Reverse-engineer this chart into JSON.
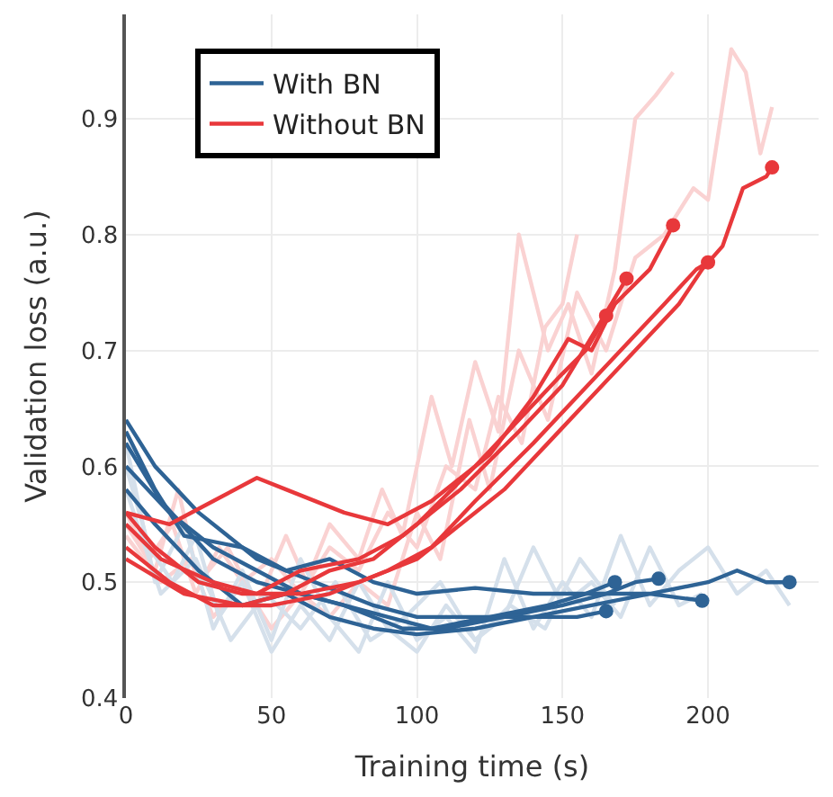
{
  "chart_data": {
    "type": "line",
    "xlabel": "Training time (s)",
    "ylabel": "Validation loss (a.u.)",
    "xlim": [
      0,
      238
    ],
    "ylim": [
      0.4,
      0.99
    ],
    "xticks": [
      0,
      50,
      100,
      150,
      200
    ],
    "yticks": [
      0.4,
      0.5,
      0.6,
      0.7,
      0.8,
      0.9
    ],
    "grid": true,
    "legend": "top left",
    "marker": "none",
    "line_style": "solid",
    "series": [
      {
        "color": "#fad2d2",
        "x": [
          0,
          10,
          18,
          25,
          35,
          45,
          55,
          62,
          70,
          80,
          88,
          95,
          105,
          112,
          120,
          128,
          135,
          145,
          152,
          160,
          168,
          175,
          182,
          188
        ],
        "values": [
          0.55,
          0.51,
          0.58,
          0.5,
          0.53,
          0.48,
          0.54,
          0.5,
          0.55,
          0.52,
          0.58,
          0.54,
          0.66,
          0.6,
          0.69,
          0.63,
          0.8,
          0.7,
          0.74,
          0.68,
          0.77,
          0.9,
          0.92,
          0.94
        ]
      },
      {
        "color": "#fad2d2",
        "x": [
          0,
          12,
          22,
          30,
          40,
          50,
          60,
          70,
          80,
          90,
          100,
          108,
          118,
          125,
          135,
          145,
          155,
          165,
          175,
          185,
          195,
          200,
          208,
          213,
          218,
          222
        ],
        "values": [
          0.54,
          0.5,
          0.52,
          0.47,
          0.5,
          0.46,
          0.49,
          0.47,
          0.5,
          0.48,
          0.56,
          0.52,
          0.64,
          0.58,
          0.7,
          0.64,
          0.75,
          0.7,
          0.78,
          0.8,
          0.84,
          0.83,
          0.96,
          0.94,
          0.87,
          0.91
        ]
      },
      {
        "color": "#fad2d2",
        "x": [
          0,
          8,
          16,
          24,
          32,
          40,
          50,
          60,
          70,
          80,
          90,
          100,
          110,
          120,
          128,
          136,
          144,
          150,
          155
        ],
        "values": [
          0.56,
          0.52,
          0.55,
          0.49,
          0.53,
          0.5,
          0.52,
          0.49,
          0.53,
          0.51,
          0.56,
          0.53,
          0.6,
          0.58,
          0.66,
          0.62,
          0.72,
          0.74,
          0.8
        ]
      },
      {
        "color": "#d5e0eb",
        "x": [
          0,
          10,
          20,
          30,
          40,
          50,
          60,
          70,
          80,
          90,
          100,
          110,
          120,
          130,
          140,
          150,
          160,
          170,
          180,
          190,
          200,
          210,
          220,
          228
        ],
        "values": [
          0.62,
          0.5,
          0.55,
          0.46,
          0.51,
          0.45,
          0.52,
          0.47,
          0.44,
          0.5,
          0.45,
          0.47,
          0.44,
          0.52,
          0.46,
          0.5,
          0.47,
          0.54,
          0.48,
          0.51,
          0.53,
          0.49,
          0.51,
          0.48
        ]
      },
      {
        "color": "#d5e0eb",
        "x": [
          0,
          8,
          16,
          24,
          32,
          40,
          50,
          60,
          70,
          80,
          90,
          100,
          110,
          120,
          130,
          140,
          150,
          160,
          170,
          180,
          190,
          198
        ],
        "values": [
          0.6,
          0.53,
          0.5,
          0.54,
          0.47,
          0.5,
          0.44,
          0.48,
          0.45,
          0.5,
          0.46,
          0.44,
          0.48,
          0.45,
          0.47,
          0.53,
          0.48,
          0.5,
          0.47,
          0.53,
          0.48,
          0.49
        ]
      },
      {
        "color": "#d5e0eb",
        "x": [
          0,
          12,
          24,
          36,
          48,
          60,
          72,
          84,
          96,
          108,
          120,
          132,
          144,
          156,
          168
        ],
        "values": [
          0.58,
          0.49,
          0.52,
          0.45,
          0.49,
          0.46,
          0.5,
          0.45,
          0.47,
          0.5,
          0.45,
          0.48,
          0.46,
          0.52,
          0.48
        ]
      },
      {
        "name": "With BN",
        "color": "#2e6395",
        "x": [
          0,
          10,
          25,
          45,
          65,
          85,
          100,
          120,
          140,
          160,
          180,
          200,
          210,
          220,
          228
        ],
        "values": [
          0.64,
          0.6,
          0.56,
          0.52,
          0.5,
          0.48,
          0.47,
          0.47,
          0.47,
          0.48,
          0.49,
          0.5,
          0.51,
          0.5,
          0.5
        ]
      },
      {
        "color": "#2e6395",
        "x": [
          0,
          10,
          20,
          40,
          55,
          70,
          85,
          100,
          120,
          140,
          160,
          180,
          198
        ],
        "values": [
          0.63,
          0.58,
          0.54,
          0.53,
          0.51,
          0.52,
          0.5,
          0.49,
          0.495,
          0.49,
          0.49,
          0.49,
          0.484
        ]
      },
      {
        "color": "#2e6395",
        "x": [
          0,
          12,
          30,
          45,
          60,
          75,
          95,
          110,
          130,
          150,
          165,
          175,
          183
        ],
        "values": [
          0.62,
          0.57,
          0.52,
          0.5,
          0.49,
          0.48,
          0.46,
          0.46,
          0.47,
          0.48,
          0.49,
          0.5,
          0.503
        ]
      },
      {
        "color": "#2e6395",
        "x": [
          0,
          15,
          30,
          45,
          60,
          75,
          90,
          105,
          125,
          145,
          158,
          168
        ],
        "values": [
          0.6,
          0.56,
          0.53,
          0.51,
          0.49,
          0.48,
          0.47,
          0.46,
          0.47,
          0.48,
          0.49,
          0.5
        ]
      },
      {
        "color": "#2e6395",
        "x": [
          0,
          10,
          25,
          40,
          55,
          70,
          85,
          100,
          120,
          140,
          155,
          165
        ],
        "values": [
          0.58,
          0.55,
          0.51,
          0.48,
          0.49,
          0.47,
          0.46,
          0.455,
          0.46,
          0.47,
          0.47,
          0.475
        ]
      },
      {
        "name": "Without BN",
        "color": "#e8383b",
        "x": [
          0,
          10,
          25,
          40,
          60,
          80,
          100,
          115,
          130,
          145,
          160,
          175,
          190,
          198,
          205,
          212,
          220,
          222
        ],
        "values": [
          0.56,
          0.53,
          0.5,
          0.49,
          0.49,
          0.5,
          0.52,
          0.55,
          0.58,
          0.62,
          0.66,
          0.7,
          0.74,
          0.77,
          0.79,
          0.84,
          0.85,
          0.858
        ]
      },
      {
        "color": "#e8383b",
        "x": [
          0,
          15,
          30,
          50,
          70,
          90,
          105,
          120,
          140,
          155,
          170,
          185,
          196,
          200
        ],
        "values": [
          0.53,
          0.5,
          0.48,
          0.48,
          0.49,
          0.51,
          0.53,
          0.57,
          0.62,
          0.66,
          0.7,
          0.74,
          0.77,
          0.776
        ]
      },
      {
        "color": "#e8383b",
        "x": [
          0,
          15,
          30,
          45,
          55,
          75,
          90,
          105,
          125,
          140,
          152,
          160,
          168,
          180,
          188
        ],
        "values": [
          0.56,
          0.55,
          0.57,
          0.59,
          0.58,
          0.56,
          0.55,
          0.57,
          0.61,
          0.66,
          0.71,
          0.7,
          0.74,
          0.77,
          0.808
        ]
      },
      {
        "color": "#e8383b",
        "x": [
          0,
          12,
          30,
          45,
          60,
          80,
          95,
          115,
          135,
          150,
          162,
          172
        ],
        "values": [
          0.55,
          0.52,
          0.5,
          0.49,
          0.51,
          0.52,
          0.54,
          0.58,
          0.63,
          0.67,
          0.72,
          0.762
        ]
      },
      {
        "color": "#e8383b",
        "x": [
          0,
          20,
          40,
          55,
          70,
          85,
          100,
          120,
          135,
          150,
          158,
          165
        ],
        "values": [
          0.52,
          0.49,
          0.48,
          0.49,
          0.51,
          0.52,
          0.55,
          0.6,
          0.64,
          0.68,
          0.7,
          0.73
        ]
      },
      {
        "type": "scatter",
        "marker": "circle",
        "color": "#2e6395",
        "x": [
          228,
          198,
          183,
          168,
          165
        ],
        "values": [
          0.5,
          0.484,
          0.503,
          0.5,
          0.475
        ]
      },
      {
        "type": "scatter",
        "marker": "circle",
        "color": "#e8383b",
        "x": [
          222,
          200,
          188,
          172,
          165
        ],
        "values": [
          0.858,
          0.776,
          0.808,
          0.762,
          0.73
        ]
      }
    ]
  }
}
